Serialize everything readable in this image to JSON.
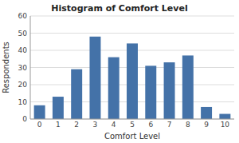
{
  "chart_data": {
    "type": "bar",
    "title": "Histogram of Comfort Level",
    "xlabel": "Comfort Level",
    "ylabel": "Respondents",
    "categories": [
      0,
      1,
      2,
      3,
      4,
      5,
      6,
      7,
      8,
      9,
      10
    ],
    "values": [
      8,
      13,
      29,
      48,
      36,
      44,
      31,
      33,
      37,
      7,
      3
    ],
    "color": "#4472a8",
    "ylim": [
      0,
      60
    ],
    "yticks": [
      0,
      10,
      20,
      30,
      40,
      50,
      60
    ],
    "grid": true
  }
}
